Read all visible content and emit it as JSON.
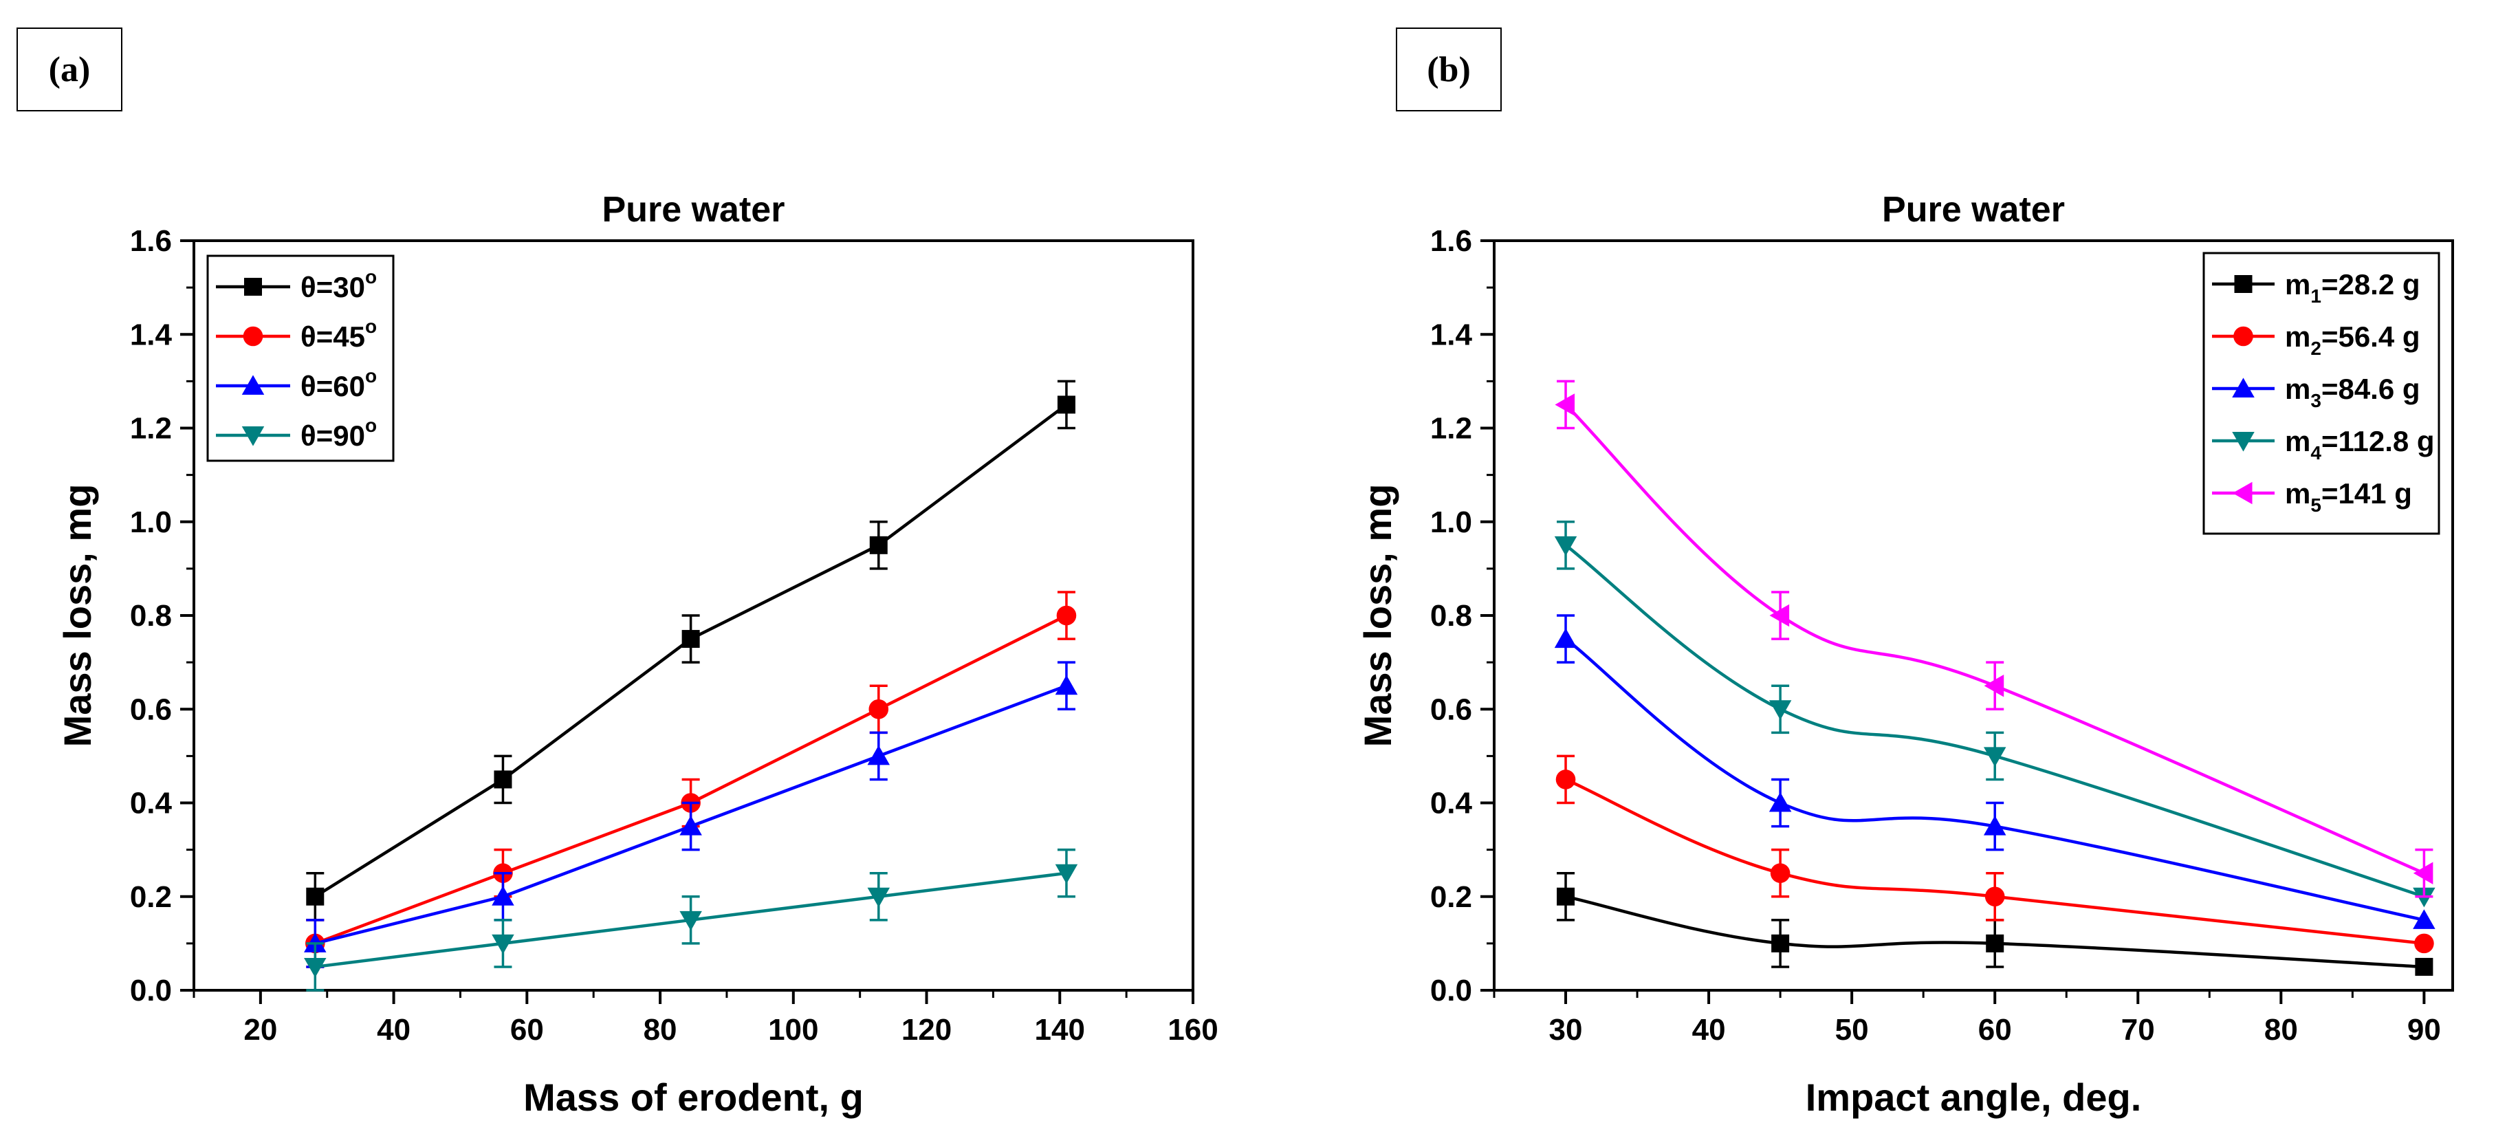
{
  "chart_data": [
    {
      "panel_label": "(a)",
      "type": "line",
      "title": "Pure water",
      "xlabel": "Mass of erodent, g",
      "ylabel": "Mass loss, mg",
      "xlim": [
        10,
        160
      ],
      "ylim": [
        0,
        1.6
      ],
      "xticks": [
        20,
        40,
        60,
        80,
        100,
        120,
        140,
        160
      ],
      "yticks": [
        "0.0",
        "0.2",
        "0.4",
        "0.6",
        "0.8",
        "1.0",
        "1.2",
        "1.4",
        "1.6"
      ],
      "legend_position": "top-left",
      "grid": false,
      "x": [
        28.2,
        56.4,
        84.6,
        112.8,
        141
      ],
      "series": [
        {
          "name": "θ=30",
          "deg": "o",
          "color": "#000000",
          "marker": "square",
          "values": [
            0.2,
            0.45,
            0.75,
            0.95,
            1.25
          ],
          "errors": [
            0.05,
            0.05,
            0.05,
            0.05,
            0.05
          ]
        },
        {
          "name": "θ=45",
          "deg": "o",
          "color": "#ff0000",
          "marker": "circle",
          "values": [
            0.1,
            0.25,
            0.4,
            0.6,
            0.8
          ],
          "errors": [
            0.05,
            0.05,
            0.05,
            0.05,
            0.05
          ]
        },
        {
          "name": "θ=60",
          "deg": "o",
          "color": "#0000ff",
          "marker": "triangle-up",
          "values": [
            0.1,
            0.2,
            0.35,
            0.5,
            0.65
          ],
          "errors": [
            0.05,
            0.05,
            0.05,
            0.05,
            0.05
          ]
        },
        {
          "name": "θ=90",
          "deg": "o",
          "color": "#008080",
          "marker": "triangle-down",
          "values": [
            0.05,
            0.1,
            0.15,
            0.2,
            0.25
          ],
          "errors": [
            0.05,
            0.05,
            0.05,
            0.05,
            0.05
          ]
        }
      ]
    },
    {
      "panel_label": "(b)",
      "type": "line",
      "title": "Pure water",
      "xlabel": "Impact angle, deg.",
      "ylabel": "Mass loss, mg",
      "xlim": [
        25,
        92
      ],
      "ylim": [
        0,
        1.6
      ],
      "xticks": [
        30,
        40,
        50,
        60,
        70,
        80,
        90
      ],
      "yticks": [
        "0.0",
        "0.2",
        "0.4",
        "0.6",
        "0.8",
        "1.0",
        "1.2",
        "1.4",
        "1.6"
      ],
      "legend_position": "top-right",
      "grid": false,
      "x": [
        30,
        45,
        60,
        90
      ],
      "series": [
        {
          "name": "m",
          "sub": "1",
          "rest": "=28.2 g",
          "color": "#000000",
          "marker": "square",
          "values": [
            0.2,
            0.1,
            0.1,
            0.05
          ],
          "errors": [
            0.05,
            0.05,
            0.05,
            0.0
          ]
        },
        {
          "name": "m",
          "sub": "2",
          "rest": "=56.4 g",
          "color": "#ff0000",
          "marker": "circle",
          "values": [
            0.45,
            0.25,
            0.2,
            0.1
          ],
          "errors": [
            0.05,
            0.05,
            0.05,
            0.0
          ]
        },
        {
          "name": "m",
          "sub": "3",
          "rest": "=84.6 g",
          "color": "#0000ff",
          "marker": "triangle-up",
          "values": [
            0.75,
            0.4,
            0.35,
            0.15
          ],
          "errors": [
            0.05,
            0.05,
            0.05,
            0.0
          ]
        },
        {
          "name": "m",
          "sub": "4",
          "rest": "=112.8 g",
          "color": "#008080",
          "marker": "triangle-down",
          "values": [
            0.95,
            0.6,
            0.5,
            0.2
          ],
          "errors": [
            0.05,
            0.05,
            0.05,
            0.0
          ]
        },
        {
          "name": "m",
          "sub": "5",
          "rest": "=141 g",
          "color": "#ff00ff",
          "marker": "triangle-left",
          "values": [
            1.25,
            0.8,
            0.65,
            0.25
          ],
          "errors": [
            0.05,
            0.05,
            0.05,
            0.05
          ]
        }
      ]
    }
  ]
}
